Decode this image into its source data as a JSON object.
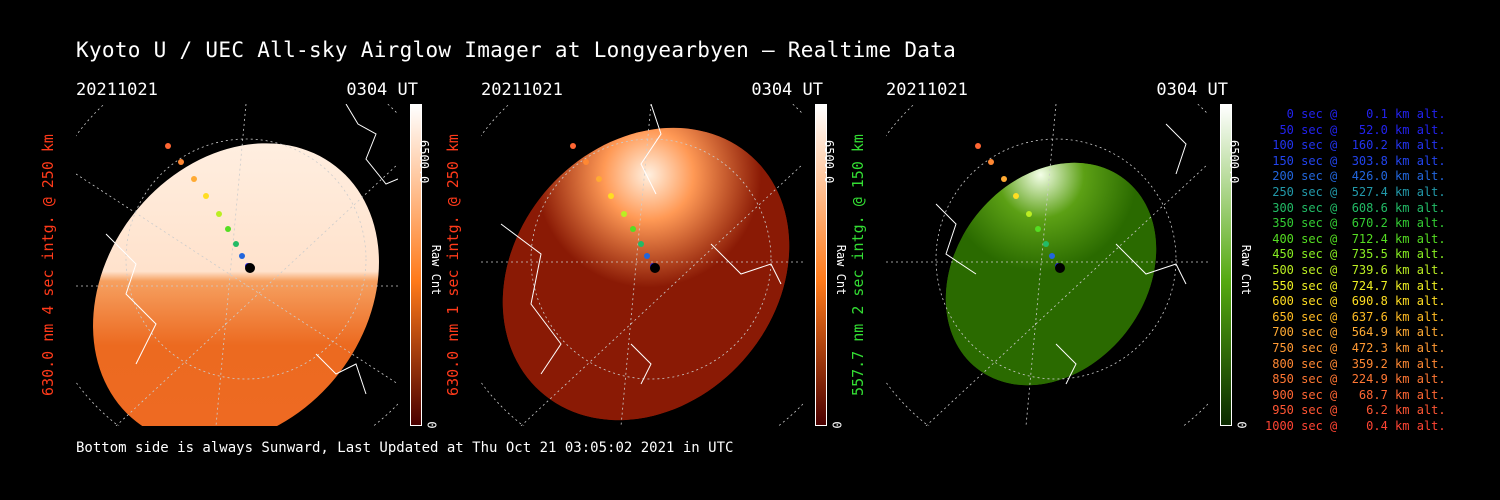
{
  "title": "Kyoto U / UEC All-sky Airglow Imager at Longyearbyen — Realtime Data",
  "footer": "Bottom side is always Sunward, Last Updated at Thu Oct 21 03:05:02 2021 in UTC",
  "panels": [
    {
      "date": "20211021",
      "time": "0304 UT",
      "label": "630.0 nm 4 sec intg. @ 250 km",
      "label_color": "#ff3a1a",
      "cbar_max": "6500.0",
      "cbar_unit": "Raw Cnt",
      "cbar_min": "0",
      "cbar_top": "#ffffff",
      "cbar_mid": "#ff7a1a",
      "cbar_bottom": "#4a0000"
    },
    {
      "date": "20211021",
      "time": "0304 UT",
      "label": "630.0 nm 1 sec intg. @ 250 km",
      "label_color": "#ff3a1a",
      "cbar_max": "6500.0",
      "cbar_unit": "Raw Cnt",
      "cbar_min": "0",
      "cbar_top": "#ffffff",
      "cbar_mid": "#ff7a1a",
      "cbar_bottom": "#4a0000"
    },
    {
      "date": "20211021",
      "time": "0304 UT",
      "label": "557.7 nm 2 sec intg. @ 150 km",
      "label_color": "#33dd33",
      "cbar_max": "6500.0",
      "cbar_unit": "Raw Cnt",
      "cbar_min": "0",
      "cbar_top": "#ffffff",
      "cbar_mid": "#55aa11",
      "cbar_bottom": "#0b2a00"
    }
  ],
  "legend": [
    {
      "text": "   0 sec @    0.1 km alt.",
      "color": "#2222ee"
    },
    {
      "text": "  50 sec @   52.0 km alt.",
      "color": "#2222ee"
    },
    {
      "text": " 100 sec @  160.2 km alt.",
      "color": "#2233ee"
    },
    {
      "text": " 150 sec @  303.8 km alt.",
      "color": "#2244ee"
    },
    {
      "text": " 200 sec @  426.0 km alt.",
      "color": "#2266dd"
    },
    {
      "text": " 250 sec @  527.4 km alt.",
      "color": "#2299aa"
    },
    {
      "text": " 300 sec @  608.6 km alt.",
      "color": "#22bb66"
    },
    {
      "text": " 350 sec @  670.2 km alt.",
      "color": "#33cc33"
    },
    {
      "text": " 400 sec @  712.4 km alt.",
      "color": "#55dd22"
    },
    {
      "text": " 450 sec @  735.5 km alt.",
      "color": "#88ee22"
    },
    {
      "text": " 500 sec @  739.6 km alt.",
      "color": "#bbee22"
    },
    {
      "text": " 550 sec @  724.7 km alt.",
      "color": "#eeee22"
    },
    {
      "text": " 600 sec @  690.8 km alt.",
      "color": "#ffdd22"
    },
    {
      "text": " 650 sec @  637.6 km alt.",
      "color": "#ffbb22"
    },
    {
      "text": " 700 sec @  564.9 km alt.",
      "color": "#ffaa33"
    },
    {
      "text": " 750 sec @  472.3 km alt.",
      "color": "#ff9933"
    },
    {
      "text": " 800 sec @  359.2 km alt.",
      "color": "#ff8833"
    },
    {
      "text": " 850 sec @  224.9 km alt.",
      "color": "#ff7733"
    },
    {
      "text": " 900 sec @   68.7 km alt.",
      "color": "#ff6633"
    },
    {
      "text": " 950 sec @    6.2 km alt.",
      "color": "#ff5533"
    },
    {
      "text": "1000 sec @    0.4 km alt.",
      "color": "#ff4433"
    }
  ]
}
